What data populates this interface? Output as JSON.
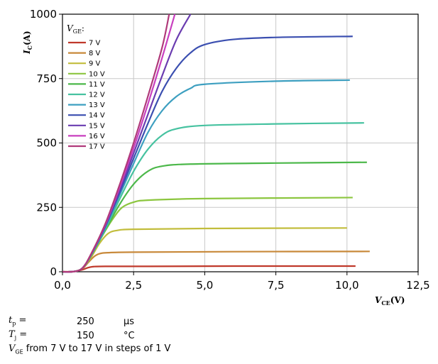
{
  "chart_data": {
    "type": "line",
    "xlabel_sym": "V",
    "xlabel_sub": "CE",
    "xlabel_unit": "(V)",
    "ylabel_sym": "I",
    "ylabel_sub": "C",
    "ylabel_unit": "(A)",
    "xlim": [
      0,
      12.5
    ],
    "ylim": [
      0,
      1000
    ],
    "x_ticks": [
      "0,0",
      "2,5",
      "5,0",
      "7,5",
      "10,0",
      "12,5"
    ],
    "y_ticks": [
      "0",
      "250",
      "500",
      "750",
      "1000"
    ],
    "grid": true,
    "legend_title_sym": "V",
    "legend_title_sub": "GE",
    "legend_title_suffix": ":",
    "legend_position": "top-left",
    "series": [
      {
        "name": "7 V",
        "color": "#c0392b",
        "points": [
          [
            0,
            0
          ],
          [
            0.4,
            1
          ],
          [
            0.7,
            8
          ],
          [
            0.9,
            16
          ],
          [
            1.1,
            20
          ],
          [
            1.5,
            21
          ],
          [
            3,
            21
          ],
          [
            6,
            22
          ],
          [
            10.3,
            22
          ]
        ]
      },
      {
        "name": "8 V",
        "color": "#c8893a",
        "points": [
          [
            0,
            0
          ],
          [
            0.4,
            1
          ],
          [
            0.7,
            12
          ],
          [
            0.9,
            35
          ],
          [
            1.1,
            58
          ],
          [
            1.3,
            70
          ],
          [
            1.6,
            74
          ],
          [
            2.5,
            76
          ],
          [
            6,
            78
          ],
          [
            10.8,
            79
          ]
        ]
      },
      {
        "name": "9 V",
        "color": "#c2bd3c",
        "points": [
          [
            0,
            0
          ],
          [
            0.4,
            1
          ],
          [
            0.7,
            14
          ],
          [
            1.0,
            55
          ],
          [
            1.3,
            110
          ],
          [
            1.6,
            148
          ],
          [
            1.9,
            160
          ],
          [
            2.5,
            165
          ],
          [
            5,
            168
          ],
          [
            10,
            170
          ]
        ]
      },
      {
        "name": "10 V",
        "color": "#8cc63f",
        "points": [
          [
            0,
            0
          ],
          [
            0.4,
            1
          ],
          [
            0.7,
            14
          ],
          [
            1.0,
            60
          ],
          [
            1.4,
            140
          ],
          [
            1.8,
            210
          ],
          [
            2.1,
            250
          ],
          [
            2.5,
            270
          ],
          [
            3,
            278
          ],
          [
            5,
            284
          ],
          [
            10.2,
            288
          ]
        ]
      },
      {
        "name": "11 V",
        "color": "#4cb84a",
        "points": [
          [
            0,
            0
          ],
          [
            0.4,
            1
          ],
          [
            0.7,
            14
          ],
          [
            1.0,
            62
          ],
          [
            1.5,
            160
          ],
          [
            2.0,
            260
          ],
          [
            2.5,
            340
          ],
          [
            3,
            390
          ],
          [
            3.5,
            410
          ],
          [
            4.5,
            418
          ],
          [
            7.5,
            422
          ],
          [
            10.7,
            425
          ]
        ]
      },
      {
        "name": "12 V",
        "color": "#46c2a0",
        "points": [
          [
            0,
            0
          ],
          [
            0.4,
            1
          ],
          [
            0.7,
            14
          ],
          [
            1.0,
            63
          ],
          [
            1.5,
            165
          ],
          [
            2.0,
            280
          ],
          [
            2.5,
            390
          ],
          [
            3,
            475
          ],
          [
            3.5,
            530
          ],
          [
            4,
            555
          ],
          [
            5,
            568
          ],
          [
            7.5,
            574
          ],
          [
            10.6,
            578
          ]
        ]
      },
      {
        "name": "13 V",
        "color": "#3d9fc0",
        "points": [
          [
            0,
            0
          ],
          [
            0.4,
            1
          ],
          [
            0.7,
            14
          ],
          [
            1.0,
            64
          ],
          [
            1.5,
            170
          ],
          [
            2.0,
            295
          ],
          [
            2.5,
            420
          ],
          [
            3,
            540
          ],
          [
            3.5,
            625
          ],
          [
            4,
            680
          ],
          [
            4.5,
            712
          ],
          [
            5,
            728
          ],
          [
            7.5,
            740
          ],
          [
            10.1,
            744
          ]
        ]
      },
      {
        "name": "14 V",
        "color": "#3b4fb0",
        "points": [
          [
            0,
            0
          ],
          [
            0.4,
            1
          ],
          [
            0.7,
            14
          ],
          [
            1.0,
            65
          ],
          [
            1.5,
            175
          ],
          [
            2.0,
            305
          ],
          [
            2.5,
            440
          ],
          [
            3,
            575
          ],
          [
            3.5,
            700
          ],
          [
            4,
            790
          ],
          [
            4.5,
            850
          ],
          [
            5,
            882
          ],
          [
            6,
            902
          ],
          [
            7.5,
            910
          ],
          [
            10.2,
            914
          ]
        ]
      },
      {
        "name": "15 V",
        "color": "#6a3cb0",
        "points": [
          [
            0,
            0
          ],
          [
            0.4,
            1
          ],
          [
            0.7,
            14
          ],
          [
            1.0,
            66
          ],
          [
            1.5,
            178
          ],
          [
            2.0,
            315
          ],
          [
            2.5,
            460
          ],
          [
            3,
            610
          ],
          [
            3.5,
            760
          ],
          [
            4.0,
            900
          ],
          [
            4.5,
            1000
          ]
        ]
      },
      {
        "name": "16 V",
        "color": "#c83fbf",
        "points": [
          [
            0,
            0
          ],
          [
            0.4,
            1
          ],
          [
            0.7,
            14
          ],
          [
            1.0,
            67
          ],
          [
            1.5,
            182
          ],
          [
            2.0,
            325
          ],
          [
            2.5,
            480
          ],
          [
            3,
            650
          ],
          [
            3.5,
            830
          ],
          [
            3.95,
            1000
          ]
        ]
      },
      {
        "name": "17 V",
        "color": "#b03a7a",
        "points": [
          [
            0,
            0
          ],
          [
            0.4,
            1
          ],
          [
            0.7,
            14
          ],
          [
            1.0,
            68
          ],
          [
            1.5,
            185
          ],
          [
            2.0,
            335
          ],
          [
            2.5,
            500
          ],
          [
            3,
            680
          ],
          [
            3.5,
            870
          ],
          [
            3.75,
            1000
          ]
        ]
      }
    ]
  },
  "notes": {
    "tp_sym": "t",
    "tp_sub": "p",
    "tp_eq": " =",
    "tp_value": "250",
    "tp_unit": "µs",
    "tj_sym": "T",
    "tj_sub": "j",
    "tj_eq": " =",
    "tj_value": "150",
    "tj_unit": "°C",
    "vge_sym": "V",
    "vge_sub": "GE",
    "vge_text": " from 7 V to 17 V in steps of 1 V"
  }
}
